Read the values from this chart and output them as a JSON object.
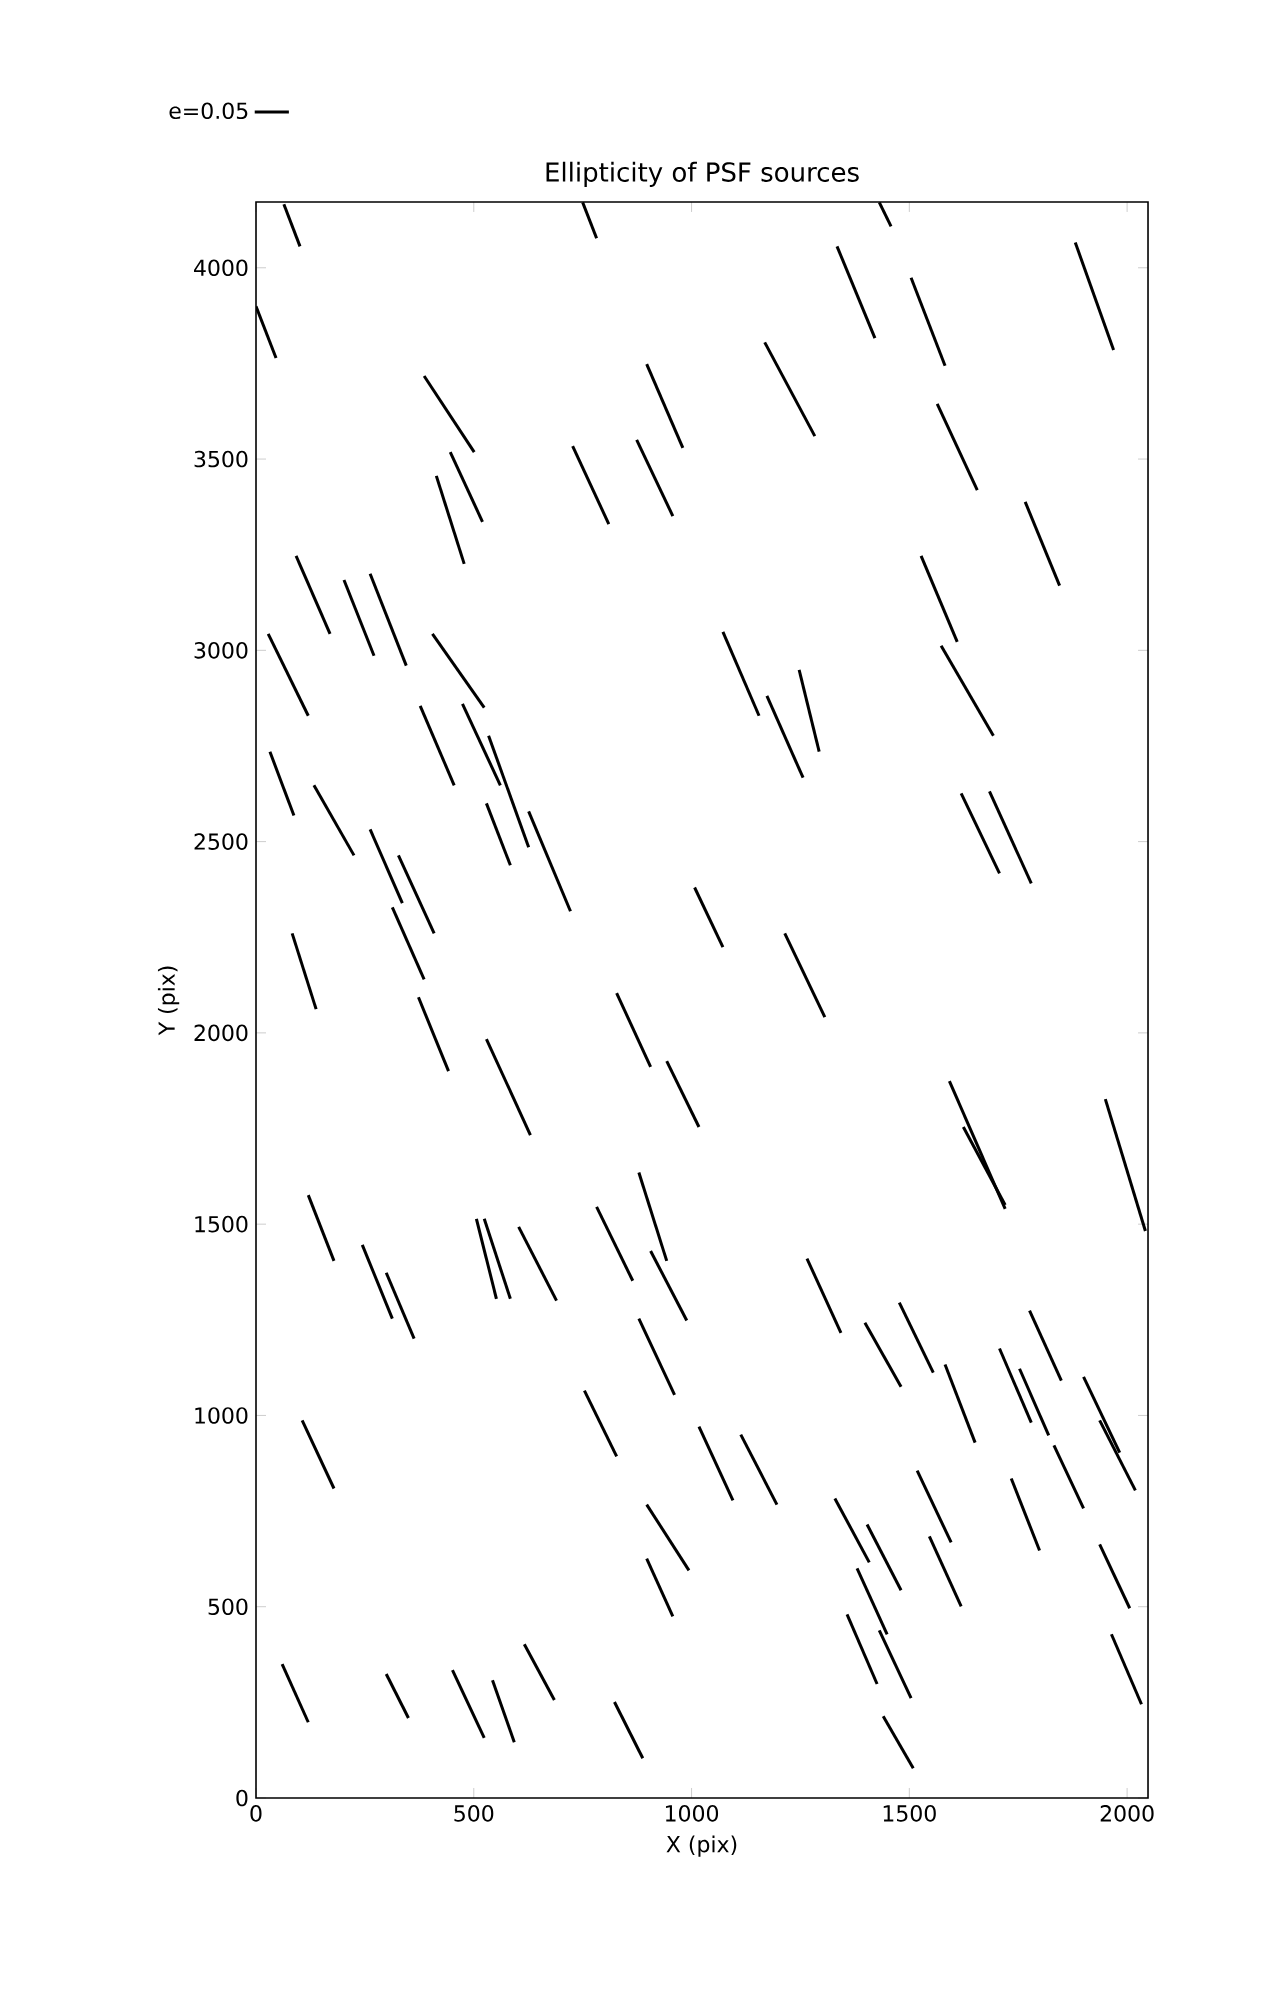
{
  "chart_data": {
    "type": "line",
    "title": "Ellipticity of PSF sources",
    "xlabel": "X (pix)",
    "ylabel": "Y (pix)",
    "xlim": [
      0,
      2048
    ],
    "ylim": [
      0,
      4172
    ],
    "xticks": [
      0,
      500,
      1000,
      1500,
      2000
    ],
    "yticks": [
      0,
      500,
      1000,
      1500,
      2000,
      2500,
      3000,
      3500,
      4000
    ],
    "legend": "top left",
    "series": [
      {
        "name": "e=0.05",
        "color": "#000000",
        "x": [
          64,
          101
        ],
        "values": [
          4166,
          4056
        ]
      },
      {
        "color": "#000000",
        "x": [
          750,
          782
        ],
        "values": [
          4171,
          4077
        ]
      },
      {
        "color": "#000000",
        "x": [
          1431,
          1458
        ],
        "values": [
          4171,
          4108
        ]
      },
      {
        "color": "#000000",
        "x": [
          0,
          46
        ],
        "values": [
          3899,
          3764
        ]
      },
      {
        "color": "#000000",
        "x": [
          1334,
          1421
        ],
        "values": [
          4056,
          3816
        ]
      },
      {
        "color": "#000000",
        "x": [
          1504,
          1582
        ],
        "values": [
          3974,
          3744
        ]
      },
      {
        "color": "#000000",
        "x": [
          1881,
          1969
        ],
        "values": [
          4066,
          3785
        ]
      },
      {
        "color": "#000000",
        "x": [
          386,
          501
        ],
        "values": [
          3717,
          3518
        ]
      },
      {
        "color": "#000000",
        "x": [
          897,
          980
        ],
        "values": [
          3748,
          3529
        ]
      },
      {
        "color": "#000000",
        "x": [
          1168,
          1283
        ],
        "values": [
          3805,
          3560
        ]
      },
      {
        "color": "#000000",
        "x": [
          1564,
          1656
        ],
        "values": [
          3644,
          3419
        ]
      },
      {
        "color": "#000000",
        "x": [
          414,
          478
        ],
        "values": [
          3456,
          3226
        ]
      },
      {
        "color": "#000000",
        "x": [
          446,
          520
        ],
        "values": [
          3518,
          3336
        ]
      },
      {
        "color": "#000000",
        "x": [
          727,
          810
        ],
        "values": [
          3534,
          3330
        ]
      },
      {
        "color": "#000000",
        "x": [
          874,
          957
        ],
        "values": [
          3550,
          3351
        ]
      },
      {
        "color": "#000000",
        "x": [
          1766,
          1845
        ],
        "values": [
          3388,
          3169
        ]
      },
      {
        "color": "#000000",
        "x": [
          92,
          170
        ],
        "values": [
          3247,
          3043
        ]
      },
      {
        "color": "#000000",
        "x": [
          202,
          271
        ],
        "values": [
          3184,
          2986
        ]
      },
      {
        "color": "#000000",
        "x": [
          262,
          345
        ],
        "values": [
          3200,
          2960
        ]
      },
      {
        "color": "#000000",
        "x": [
          28,
          120
        ],
        "values": [
          3043,
          2829
        ]
      },
      {
        "color": "#000000",
        "x": [
          405,
          524
        ],
        "values": [
          3043,
          2850
        ]
      },
      {
        "color": "#000000",
        "x": [
          1072,
          1155
        ],
        "values": [
          3048,
          2829
        ]
      },
      {
        "color": "#000000",
        "x": [
          1247,
          1293
        ],
        "values": [
          2949,
          2735
        ]
      },
      {
        "color": "#000000",
        "x": [
          1527,
          1610
        ],
        "values": [
          3247,
          3022
        ]
      },
      {
        "color": "#000000",
        "x": [
          1573,
          1693
        ],
        "values": [
          3012,
          2777
        ]
      },
      {
        "color": "#000000",
        "x": [
          1173,
          1256
        ],
        "values": [
          2881,
          2667
        ]
      },
      {
        "color": "#000000",
        "x": [
          32,
          87
        ],
        "values": [
          2735,
          2568
        ]
      },
      {
        "color": "#000000",
        "x": [
          133,
          225
        ],
        "values": [
          2647,
          2464
        ]
      },
      {
        "color": "#000000",
        "x": [
          377,
          455
        ],
        "values": [
          2855,
          2647
        ]
      },
      {
        "color": "#000000",
        "x": [
          474,
          561
        ],
        "values": [
          2860,
          2647
        ]
      },
      {
        "color": "#000000",
        "x": [
          534,
          626
        ],
        "values": [
          2777,
          2485
        ]
      },
      {
        "color": "#000000",
        "x": [
          529,
          584
        ],
        "values": [
          2600,
          2438
        ]
      },
      {
        "color": "#000000",
        "x": [
          626,
          722
        ],
        "values": [
          2579,
          2318
        ]
      },
      {
        "color": "#000000",
        "x": [
          262,
          336
        ],
        "values": [
          2532,
          2339
        ]
      },
      {
        "color": "#000000",
        "x": [
          327,
          409
        ],
        "values": [
          2464,
          2260
        ]
      },
      {
        "color": "#000000",
        "x": [
          313,
          386
        ],
        "values": [
          2328,
          2140
        ]
      },
      {
        "color": "#000000",
        "x": [
          83,
          138
        ],
        "values": [
          2260,
          2062
        ]
      },
      {
        "color": "#000000",
        "x": [
          373,
          442
        ],
        "values": [
          2093,
          1900
        ]
      },
      {
        "color": "#000000",
        "x": [
          529,
          630
        ],
        "values": [
          1984,
          1733
        ]
      },
      {
        "color": "#000000",
        "x": [
          1007,
          1072
        ],
        "values": [
          2380,
          2224
        ]
      },
      {
        "color": "#000000",
        "x": [
          828,
          906
        ],
        "values": [
          2104,
          1911
        ]
      },
      {
        "color": "#000000",
        "x": [
          943,
          1017
        ],
        "values": [
          1926,
          1754
        ]
      },
      {
        "color": "#000000",
        "x": [
          1214,
          1306
        ],
        "values": [
          2260,
          2041
        ]
      },
      {
        "color": "#000000",
        "x": [
          1619,
          1707
        ],
        "values": [
          2626,
          2417
        ]
      },
      {
        "color": "#000000",
        "x": [
          1684,
          1780
        ],
        "values": [
          2631,
          2391
        ]
      },
      {
        "color": "#000000",
        "x": [
          1592,
          1720
        ],
        "values": [
          1874,
          1540
        ]
      },
      {
        "color": "#000000",
        "x": [
          1624,
          1720
        ],
        "values": [
          1754,
          1550
        ]
      },
      {
        "color": "#000000",
        "x": [
          1950,
          2042
        ],
        "values": [
          1827,
          1482
        ]
      },
      {
        "color": "#000000",
        "x": [
          120,
          179
        ],
        "values": [
          1576,
          1404
        ]
      },
      {
        "color": "#000000",
        "x": [
          879,
          943
        ],
        "values": [
          1635,
          1404
        ]
      },
      {
        "color": "#000000",
        "x": [
          906,
          989
        ],
        "values": [
          1430,
          1248
        ]
      },
      {
        "color": "#000000",
        "x": [
          782,
          865
        ],
        "values": [
          1545,
          1352
        ]
      },
      {
        "color": "#000000",
        "x": [
          603,
          690
        ],
        "values": [
          1493,
          1300
        ]
      },
      {
        "color": "#000000",
        "x": [
          506,
          552
        ],
        "values": [
          1514,
          1305
        ]
      },
      {
        "color": "#000000",
        "x": [
          524,
          584
        ],
        "values": [
          1514,
          1305
        ]
      },
      {
        "color": "#000000",
        "x": [
          244,
          313
        ],
        "values": [
          1446,
          1253
        ]
      },
      {
        "color": "#000000",
        "x": [
          299,
          363
        ],
        "values": [
          1373,
          1201
        ]
      },
      {
        "color": "#000000",
        "x": [
          1265,
          1343
        ],
        "values": [
          1410,
          1216
        ]
      },
      {
        "color": "#000000",
        "x": [
          1398,
          1481
        ],
        "values": [
          1242,
          1075
        ]
      },
      {
        "color": "#000000",
        "x": [
          1477,
          1555
        ],
        "values": [
          1295,
          1112
        ]
      },
      {
        "color": "#000000",
        "x": [
          879,
          961
        ],
        "values": [
          1253,
          1054
        ]
      },
      {
        "color": "#000000",
        "x": [
          1582,
          1651
        ],
        "values": [
          1133,
          929
        ]
      },
      {
        "color": "#000000",
        "x": [
          1707,
          1780
        ],
        "values": [
          1175,
          981
        ]
      },
      {
        "color": "#000000",
        "x": [
          1753,
          1820
        ],
        "values": [
          1122,
          948
        ]
      },
      {
        "color": "#000000",
        "x": [
          1776,
          1849
        ],
        "values": [
          1274,
          1091
        ]
      },
      {
        "color": "#000000",
        "x": [
          1832,
          1900
        ],
        "values": [
          922,
          757
        ]
      },
      {
        "color": "#000000",
        "x": [
          1900,
          1983
        ],
        "values": [
          1101,
          903
        ]
      },
      {
        "color": "#000000",
        "x": [
          1937,
          2019
        ],
        "values": [
          987,
          804
        ]
      },
      {
        "color": "#000000",
        "x": [
          106,
          179
        ],
        "values": [
          987,
          809
        ]
      },
      {
        "color": "#000000",
        "x": [
          754,
          828
        ],
        "values": [
          1065,
          893
        ]
      },
      {
        "color": "#000000",
        "x": [
          1017,
          1095
        ],
        "values": [
          971,
          778
        ]
      },
      {
        "color": "#000000",
        "x": [
          1113,
          1196
        ],
        "values": [
          950,
          767
        ]
      },
      {
        "color": "#000000",
        "x": [
          1518,
          1596
        ],
        "values": [
          856,
          668
        ]
      },
      {
        "color": "#000000",
        "x": [
          1734,
          1799
        ],
        "values": [
          835,
          647
        ]
      },
      {
        "color": "#000000",
        "x": [
          897,
          994
        ],
        "values": [
          767,
          595
        ]
      },
      {
        "color": "#000000",
        "x": [
          1329,
          1408
        ],
        "values": [
          783,
          616
        ]
      },
      {
        "color": "#000000",
        "x": [
          1403,
          1481
        ],
        "values": [
          715,
          543
        ]
      },
      {
        "color": "#000000",
        "x": [
          1546,
          1619
        ],
        "values": [
          684,
          501
        ]
      },
      {
        "color": "#000000",
        "x": [
          1937,
          2006
        ],
        "values": [
          663,
          496
        ]
      },
      {
        "color": "#000000",
        "x": [
          897,
          957
        ],
        "values": [
          626,
          475
        ]
      },
      {
        "color": "#000000",
        "x": [
          1380,
          1449
        ],
        "values": [
          600,
          428
        ]
      },
      {
        "color": "#000000",
        "x": [
          1357,
          1426
        ],
        "values": [
          480,
          298
        ]
      },
      {
        "color": "#000000",
        "x": [
          1431,
          1504
        ],
        "values": [
          438,
          261
        ]
      },
      {
        "color": "#000000",
        "x": [
          1964,
          2033
        ],
        "values": [
          428,
          245
        ]
      },
      {
        "color": "#000000",
        "x": [
          60,
          120
        ],
        "values": [
          350,
          198
        ]
      },
      {
        "color": "#000000",
        "x": [
          299,
          350
        ],
        "values": [
          324,
          209
        ]
      },
      {
        "color": "#000000",
        "x": [
          451,
          524
        ],
        "values": [
          334,
          157
        ]
      },
      {
        "color": "#000000",
        "x": [
          543,
          593
        ],
        "values": [
          308,
          146
        ]
      },
      {
        "color": "#000000",
        "x": [
          616,
          685
        ],
        "values": [
          402,
          256
        ]
      },
      {
        "color": "#000000",
        "x": [
          823,
          888
        ],
        "values": [
          251,
          104
        ]
      },
      {
        "color": "#000000",
        "x": [
          1440,
          1509
        ],
        "values": [
          214,
          78
        ]
      }
    ]
  }
}
